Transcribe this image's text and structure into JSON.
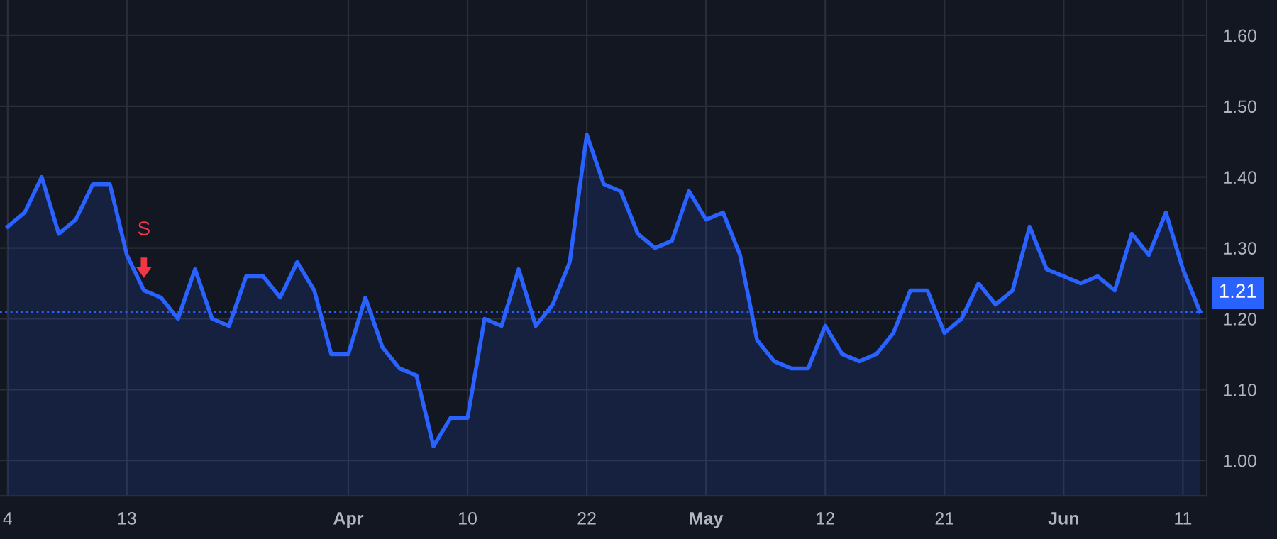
{
  "chart_data": {
    "type": "area",
    "categories": [
      "4",
      null,
      null,
      null,
      null,
      null,
      null,
      "13",
      null,
      null,
      null,
      null,
      null,
      null,
      null,
      null,
      null,
      null,
      null,
      null,
      "Apr",
      null,
      null,
      null,
      null,
      null,
      null,
      "10",
      null,
      null,
      null,
      null,
      null,
      null,
      "22",
      null,
      null,
      null,
      null,
      null,
      null,
      "May",
      null,
      null,
      null,
      null,
      null,
      null,
      "12",
      null,
      null,
      null,
      null,
      null,
      null,
      "21",
      null,
      null,
      null,
      null,
      null,
      null,
      "Jun",
      null,
      null,
      null,
      null,
      null,
      null,
      "11",
      null
    ],
    "series": [
      {
        "color": "#2962ff",
        "values": [
          1.33,
          1.35,
          1.4,
          1.32,
          1.34,
          1.39,
          1.39,
          1.29,
          1.24,
          1.23,
          1.2,
          1.27,
          1.2,
          1.19,
          1.26,
          1.26,
          1.23,
          1.28,
          1.24,
          1.15,
          1.15,
          1.23,
          1.16,
          1.13,
          1.12,
          1.02,
          1.06,
          1.06,
          1.2,
          1.19,
          1.27,
          1.19,
          1.22,
          1.28,
          1.46,
          1.39,
          1.38,
          1.32,
          1.3,
          1.31,
          1.38,
          1.34,
          1.35,
          1.29,
          1.17,
          1.14,
          1.13,
          1.13,
          1.19,
          1.15,
          1.14,
          1.15,
          1.18,
          1.24,
          1.24,
          1.18,
          1.2,
          1.25,
          1.22,
          1.24,
          1.33,
          1.27,
          1.26,
          1.25,
          1.26,
          1.24,
          1.32,
          1.29,
          1.35,
          1.27,
          1.21
        ]
      }
    ],
    "ylim": [
      0.95,
      1.65
    ],
    "yticks": [
      {
        "value": 1.0,
        "label": "1.00"
      },
      {
        "value": 1.1,
        "label": "1.10"
      },
      {
        "value": 1.2,
        "label": "1.20"
      },
      {
        "value": 1.3,
        "label": "1.30"
      },
      {
        "value": 1.4,
        "label": "1.40"
      },
      {
        "value": 1.5,
        "label": "1.50"
      },
      {
        "value": 1.6,
        "label": "1.60"
      }
    ],
    "ref_lines": [
      {
        "axis": "y",
        "value": 1.21,
        "label": "1.21",
        "color": "#2962ff",
        "line_style": "dotted"
      }
    ],
    "annotations": [
      "S"
    ],
    "grid": true
  }
}
